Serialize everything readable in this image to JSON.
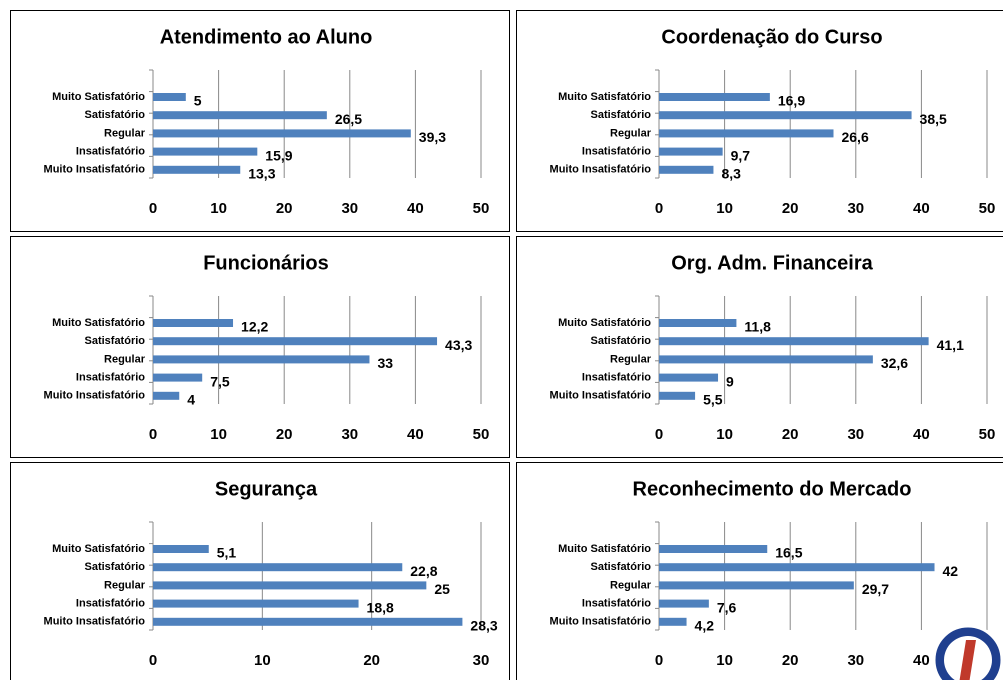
{
  "chart_data": [
    {
      "type": "bar",
      "title": "Atendimento ao Aluno",
      "categories": [
        "Muito Satisfatório",
        "Satisfatório",
        "Regular",
        "Insatisfatório",
        "Muito Insatisfatório"
      ],
      "values": [
        5,
        26.5,
        39.3,
        15.9,
        13.3
      ],
      "value_labels": [
        "5",
        "26,5",
        "39,3",
        "15,9",
        "13,3"
      ],
      "color": "#4f81bd",
      "xlim": [
        0,
        50
      ],
      "xticks": [
        0,
        10,
        20,
        30,
        40,
        50
      ],
      "grid": true
    },
    {
      "type": "bar",
      "title": "Coordenação do Curso",
      "categories": [
        "Muito Satisfatório",
        "Satisfatório",
        "Regular",
        "Insatisfatório",
        "Muito Insatisfatório"
      ],
      "values": [
        16.9,
        38.5,
        26.6,
        9.7,
        8.3
      ],
      "value_labels": [
        "16,9",
        "38,5",
        "26,6",
        "9,7",
        "8,3"
      ],
      "color": "#4f81bd",
      "xlim": [
        0,
        50
      ],
      "xticks": [
        0,
        10,
        20,
        30,
        40,
        50
      ],
      "grid": true
    },
    {
      "type": "bar",
      "title": "Funcionários",
      "categories": [
        "Muito Satisfatório",
        "Satisfatório",
        "Regular",
        "Insatisfatório",
        "Muito Insatisfatório"
      ],
      "values": [
        12.2,
        43.3,
        33,
        7.5,
        4
      ],
      "value_labels": [
        "12,2",
        "43,3",
        "33",
        "7,5",
        "4"
      ],
      "color": "#4f81bd",
      "xlim": [
        0,
        50
      ],
      "xticks": [
        0,
        10,
        20,
        30,
        40,
        50
      ],
      "grid": true
    },
    {
      "type": "bar",
      "title": "Org. Adm. Financeira",
      "categories": [
        "Muito Satisfatório",
        "Satisfatório",
        "Regular",
        "Insatisfatório",
        "Muito Insatisfatório"
      ],
      "values": [
        11.8,
        41.1,
        32.6,
        9,
        5.5
      ],
      "value_labels": [
        "11,8",
        "41,1",
        "32,6",
        "9",
        "5,5"
      ],
      "color": "#4f81bd",
      "xlim": [
        0,
        50
      ],
      "xticks": [
        0,
        10,
        20,
        30,
        40,
        50
      ],
      "grid": true
    },
    {
      "type": "bar",
      "title": "Segurança",
      "categories": [
        "Muito Satisfatório",
        "Satisfatório",
        "Regular",
        "Insatisfatório",
        "Muito Insatisfatório"
      ],
      "values": [
        5.1,
        22.8,
        25,
        18.8,
        28.3
      ],
      "value_labels": [
        "5,1",
        "22,8",
        "25",
        "18,8",
        "28,3"
      ],
      "color": "#4f81bd",
      "xlim": [
        0,
        30
      ],
      "xticks": [
        0,
        10,
        20,
        30
      ],
      "grid": true
    },
    {
      "type": "bar",
      "title": "Reconhecimento do Mercado",
      "categories": [
        "Muito Satisfatório",
        "Satisfatório",
        "Regular",
        "Insatisfatório",
        "Muito Insatisfatório"
      ],
      "values": [
        16.5,
        42,
        29.7,
        7.6,
        4.2
      ],
      "value_labels": [
        "16,5",
        "42",
        "29,7",
        "7,6",
        "4,2"
      ],
      "color": "#4f81bd",
      "xlim": [
        0,
        50
      ],
      "xticks": [
        0,
        10,
        20,
        30,
        40,
        50
      ],
      "grid": true
    }
  ]
}
